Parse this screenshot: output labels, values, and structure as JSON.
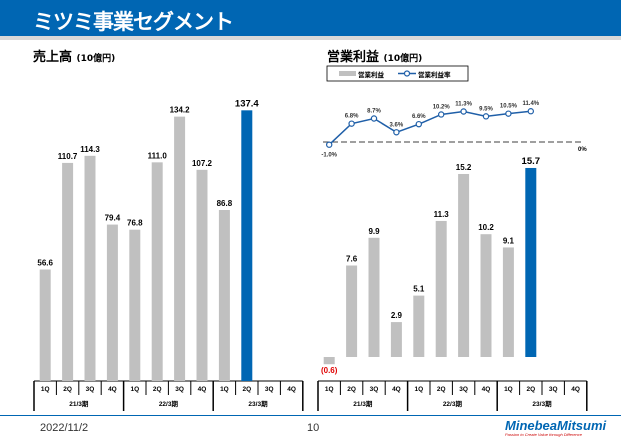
{
  "header": {
    "title": "ミツミ事業セグメント"
  },
  "footer": {
    "date": "2022/11/2",
    "page": "10",
    "logo": "MinebeaMitsumi",
    "tagline": "Passion to Create Value through Difference"
  },
  "colors": {
    "bar": "#c0c0c0",
    "highlight": "#0066b3",
    "negative_label": "#e00000",
    "line": "#1f5fa8"
  },
  "chart_data": [
    {
      "type": "bar",
      "title": "売上高",
      "unit": "(10億円)",
      "categories": [
        "1Q",
        "2Q",
        "3Q",
        "4Q",
        "1Q",
        "2Q",
        "3Q",
        "4Q",
        "1Q",
        "2Q",
        "3Q",
        "4Q"
      ],
      "groups": [
        "21/3期",
        "22/3期",
        "23/3期"
      ],
      "values": [
        56.6,
        110.7,
        114.3,
        79.4,
        76.8,
        111.0,
        134.2,
        107.2,
        86.8,
        137.4,
        null,
        null
      ],
      "labels": [
        "56.6",
        "110.7",
        "114.3",
        "79.4",
        "76.8",
        "111.0",
        "134.2",
        "107.2",
        "86.8",
        "137.4",
        "",
        ""
      ],
      "highlight_index": 9
    },
    {
      "type": "bar+line",
      "title": "営業利益",
      "unit": "(10億円)",
      "legend": [
        "営業利益",
        "営業利益率"
      ],
      "legend_placement": "top-left",
      "categories": [
        "1Q",
        "2Q",
        "3Q",
        "4Q",
        "1Q",
        "2Q",
        "3Q",
        "4Q",
        "1Q",
        "2Q",
        "3Q",
        "4Q"
      ],
      "groups": [
        "21/3期",
        "22/3期",
        "23/3期"
      ],
      "values": [
        -0.6,
        7.6,
        9.9,
        2.9,
        5.1,
        11.3,
        15.2,
        10.2,
        9.1,
        15.7,
        null,
        null
      ],
      "labels": [
        "(0.6)",
        "7.6",
        "9.9",
        "2.9",
        "5.1",
        "11.3",
        "15.2",
        "10.2",
        "9.1",
        "15.7",
        "",
        ""
      ],
      "margin": [
        -1.0,
        6.8,
        8.7,
        3.6,
        6.6,
        10.2,
        11.3,
        9.5,
        10.5,
        11.4
      ],
      "margin_labels": [
        "-1.0%",
        "6.8%",
        "8.7%",
        "3.6%",
        "6.6%",
        "10.2%",
        "11.3%",
        "9.5%",
        "10.5%",
        "11.4%"
      ],
      "zero_label": "0%",
      "highlight_index": 9
    }
  ]
}
